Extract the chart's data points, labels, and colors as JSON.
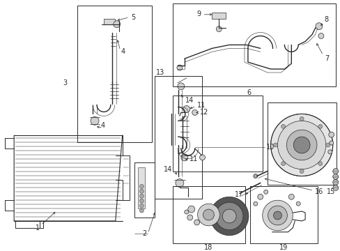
{
  "bg_color": "#ffffff",
  "lc": "#2a2a2a",
  "figsize": [
    4.89,
    3.6
  ],
  "dpi": 100,
  "fs": 7.0,
  "lw": 0.7
}
